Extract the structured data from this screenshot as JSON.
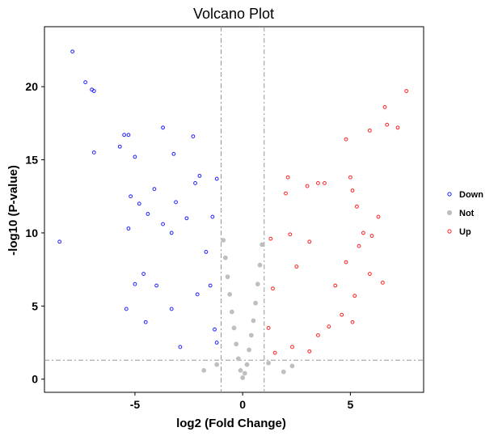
{
  "chart_data": {
    "type": "scatter",
    "title": "Volcano Plot",
    "xlabel": "log2 (Fold Change)",
    "ylabel": "-log10 (P-value)",
    "xlim": [
      -9.2,
      8.4
    ],
    "ylim": [
      -0.9,
      24.1
    ],
    "x_ticks": [
      "-5",
      "0",
      "5"
    ],
    "x_tick_values": [
      -5,
      0,
      5
    ],
    "y_ticks": [
      "0",
      "5",
      "10",
      "15",
      "20"
    ],
    "y_tick_values": [
      0,
      5,
      10,
      15,
      20
    ],
    "thresholds": {
      "log2fc": [
        -1,
        1
      ],
      "neg_log10_p": 1.3
    },
    "grid": false,
    "legend_position": "right",
    "colors": {
      "Down": "#1f1fff",
      "Not": "#bfbfbf",
      "Up": "#ff1f1f"
    },
    "series": [
      {
        "name": "Down",
        "marker": "hollow-circle",
        "points": [
          [
            -7.9,
            22.4
          ],
          [
            -7.3,
            20.3
          ],
          [
            -7.0,
            19.8
          ],
          [
            -6.9,
            19.7
          ],
          [
            -5.5,
            16.7
          ],
          [
            -5.3,
            16.7
          ],
          [
            -5.7,
            15.9
          ],
          [
            -5.0,
            15.2
          ],
          [
            -6.9,
            15.5
          ],
          [
            -3.7,
            17.2
          ],
          [
            -2.3,
            16.6
          ],
          [
            -3.2,
            15.4
          ],
          [
            -8.5,
            9.4
          ],
          [
            -5.2,
            12.5
          ],
          [
            -4.1,
            13.0
          ],
          [
            -4.8,
            12.0
          ],
          [
            -4.4,
            11.3
          ],
          [
            -3.1,
            12.1
          ],
          [
            -2.0,
            13.9
          ],
          [
            -2.2,
            13.4
          ],
          [
            -1.2,
            13.7
          ],
          [
            -5.3,
            10.3
          ],
          [
            -3.7,
            10.6
          ],
          [
            -3.3,
            10.0
          ],
          [
            -2.6,
            11.0
          ],
          [
            -1.4,
            11.1
          ],
          [
            -5.0,
            6.5
          ],
          [
            -5.4,
            4.8
          ],
          [
            -4.5,
            3.9
          ],
          [
            -4.6,
            7.2
          ],
          [
            -4.0,
            6.4
          ],
          [
            -3.3,
            4.8
          ],
          [
            -2.9,
            2.2
          ],
          [
            -1.7,
            8.7
          ],
          [
            -1.5,
            6.4
          ],
          [
            -2.1,
            5.8
          ],
          [
            -1.3,
            3.4
          ],
          [
            -1.2,
            2.5
          ]
        ]
      },
      {
        "name": "Not",
        "marker": "filled-circle",
        "points": [
          [
            0,
            0.1
          ],
          [
            0.1,
            0.4
          ],
          [
            -0.1,
            0.6
          ],
          [
            0.2,
            1.0
          ],
          [
            -0.2,
            1.4
          ],
          [
            0.3,
            2.0
          ],
          [
            -0.3,
            2.4
          ],
          [
            0.4,
            3.0
          ],
          [
            -0.4,
            3.5
          ],
          [
            0.5,
            4.0
          ],
          [
            -0.5,
            4.6
          ],
          [
            0.6,
            5.2
          ],
          [
            -0.6,
            5.8
          ],
          [
            0.7,
            6.5
          ],
          [
            -0.7,
            7.0
          ],
          [
            0.8,
            7.8
          ],
          [
            -0.8,
            8.3
          ],
          [
            0.9,
            9.2
          ],
          [
            -0.9,
            9.5
          ],
          [
            -1.2,
            1.0
          ],
          [
            1.2,
            1.1
          ],
          [
            -1.8,
            0.6
          ],
          [
            1.9,
            0.5
          ],
          [
            2.3,
            0.9
          ]
        ]
      },
      {
        "name": "Up",
        "marker": "hollow-circle",
        "points": [
          [
            7.6,
            19.7
          ],
          [
            7.2,
            17.2
          ],
          [
            6.7,
            17.4
          ],
          [
            6.6,
            18.6
          ],
          [
            5.9,
            17.0
          ],
          [
            4.8,
            16.4
          ],
          [
            5.0,
            13.8
          ],
          [
            5.1,
            12.9
          ],
          [
            5.3,
            11.8
          ],
          [
            6.3,
            11.1
          ],
          [
            3.8,
            13.4
          ],
          [
            3.5,
            13.4
          ],
          [
            3.0,
            13.2
          ],
          [
            2.1,
            13.8
          ],
          [
            2.0,
            12.7
          ],
          [
            5.6,
            10.0
          ],
          [
            6.0,
            9.8
          ],
          [
            5.4,
            9.1
          ],
          [
            4.8,
            8.0
          ],
          [
            5.9,
            7.2
          ],
          [
            6.5,
            6.6
          ],
          [
            4.3,
            6.4
          ],
          [
            5.2,
            5.7
          ],
          [
            4.6,
            4.4
          ],
          [
            5.1,
            3.9
          ],
          [
            4.0,
            3.6
          ],
          [
            3.5,
            3.0
          ],
          [
            3.1,
            1.9
          ],
          [
            2.3,
            2.2
          ],
          [
            1.5,
            1.8
          ],
          [
            1.2,
            3.5
          ],
          [
            1.4,
            6.2
          ],
          [
            2.5,
            7.7
          ],
          [
            3.1,
            9.4
          ],
          [
            2.2,
            9.9
          ],
          [
            1.3,
            9.6
          ]
        ]
      }
    ]
  }
}
